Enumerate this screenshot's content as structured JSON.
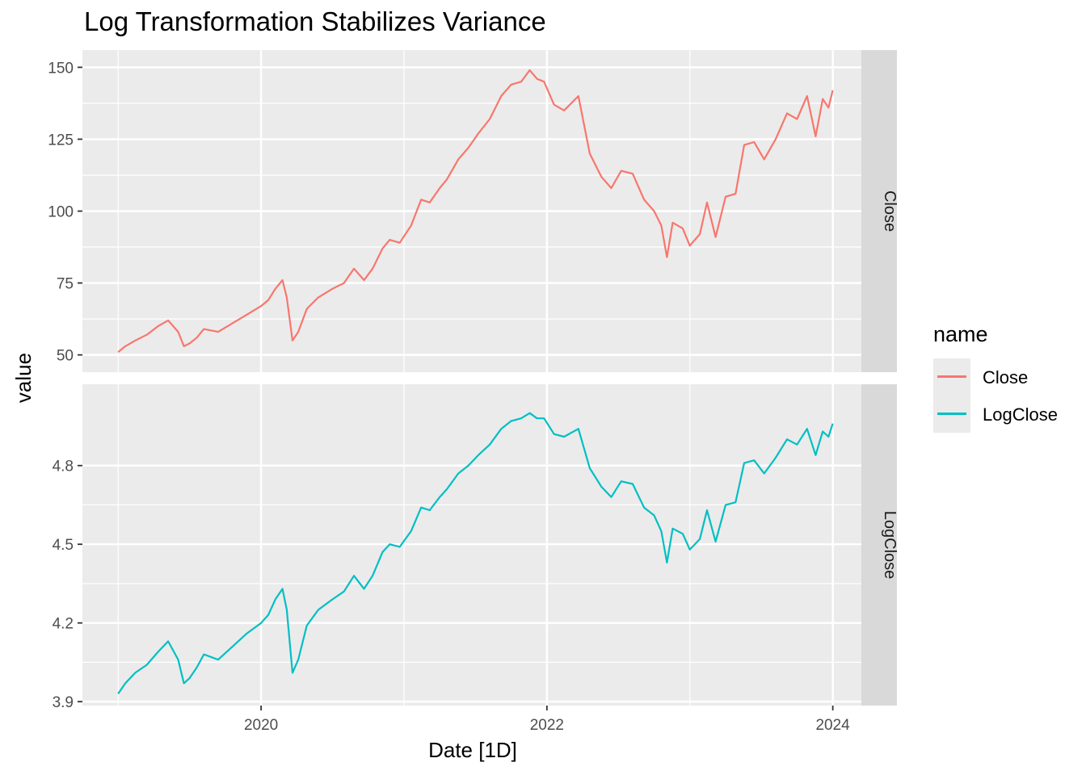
{
  "title": "Log Transformation Stabilizes Variance",
  "legend": {
    "title": "name",
    "items": [
      {
        "label": "Close",
        "color": "#F8766D"
      },
      {
        "label": "LogClose",
        "color": "#00BFC4"
      }
    ]
  },
  "chart_data": {
    "type": "line",
    "title": "Log Transformation Stabilizes Variance",
    "xlabel": "Date [1D]",
    "ylabel": "value",
    "x_ticks": [
      "2020",
      "2022",
      "2024"
    ],
    "xlim": [
      2018.75,
      2024.2
    ],
    "grid": true,
    "legend_position": "right",
    "facets": [
      {
        "strip_label": "Close",
        "series": "Close",
        "color": "#F8766D",
        "ylim": [
          44,
          156
        ],
        "y_ticks": [
          50,
          75,
          100,
          125,
          150
        ],
        "points": [
          [
            2019.0,
            51
          ],
          [
            2019.05,
            53
          ],
          [
            2019.12,
            55
          ],
          [
            2019.2,
            57
          ],
          [
            2019.28,
            60
          ],
          [
            2019.35,
            62
          ],
          [
            2019.42,
            58
          ],
          [
            2019.46,
            53
          ],
          [
            2019.5,
            54
          ],
          [
            2019.55,
            56
          ],
          [
            2019.6,
            59
          ],
          [
            2019.7,
            58
          ],
          [
            2019.8,
            61
          ],
          [
            2019.9,
            64
          ],
          [
            2020.0,
            67
          ],
          [
            2020.05,
            69
          ],
          [
            2020.1,
            73
          ],
          [
            2020.15,
            76
          ],
          [
            2020.18,
            70
          ],
          [
            2020.22,
            55
          ],
          [
            2020.26,
            58
          ],
          [
            2020.32,
            66
          ],
          [
            2020.4,
            70
          ],
          [
            2020.5,
            73
          ],
          [
            2020.58,
            75
          ],
          [
            2020.65,
            80
          ],
          [
            2020.72,
            76
          ],
          [
            2020.78,
            80
          ],
          [
            2020.85,
            87
          ],
          [
            2020.9,
            90
          ],
          [
            2020.97,
            89
          ],
          [
            2021.05,
            95
          ],
          [
            2021.12,
            104
          ],
          [
            2021.18,
            103
          ],
          [
            2021.25,
            108
          ],
          [
            2021.3,
            111
          ],
          [
            2021.38,
            118
          ],
          [
            2021.45,
            122
          ],
          [
            2021.52,
            127
          ],
          [
            2021.6,
            132
          ],
          [
            2021.68,
            140
          ],
          [
            2021.75,
            144
          ],
          [
            2021.82,
            145
          ],
          [
            2021.88,
            149
          ],
          [
            2021.93,
            146
          ],
          [
            2021.98,
            145
          ],
          [
            2022.05,
            137
          ],
          [
            2022.12,
            135
          ],
          [
            2022.22,
            140
          ],
          [
            2022.3,
            120
          ],
          [
            2022.38,
            112
          ],
          [
            2022.45,
            108
          ],
          [
            2022.52,
            114
          ],
          [
            2022.6,
            113
          ],
          [
            2022.68,
            104
          ],
          [
            2022.75,
            100
          ],
          [
            2022.8,
            95
          ],
          [
            2022.84,
            84
          ],
          [
            2022.88,
            96
          ],
          [
            2022.95,
            94
          ],
          [
            2023.0,
            88
          ],
          [
            2023.07,
            92
          ],
          [
            2023.12,
            103
          ],
          [
            2023.18,
            91
          ],
          [
            2023.25,
            105
          ],
          [
            2023.32,
            106
          ],
          [
            2023.38,
            123
          ],
          [
            2023.45,
            124
          ],
          [
            2023.52,
            118
          ],
          [
            2023.6,
            125
          ],
          [
            2023.68,
            134
          ],
          [
            2023.75,
            132
          ],
          [
            2023.82,
            140
          ],
          [
            2023.88,
            126
          ],
          [
            2023.93,
            139
          ],
          [
            2023.97,
            136
          ],
          [
            2024.0,
            142
          ]
        ]
      },
      {
        "strip_label": "LogClose",
        "series": "LogClose",
        "color": "#00BFC4",
        "ylim": [
          3.885,
          5.11
        ],
        "y_ticks": [
          3.9,
          4.2,
          4.5,
          4.8
        ],
        "points": [
          [
            2019.0,
            3.93
          ],
          [
            2019.05,
            3.97
          ],
          [
            2019.12,
            4.01
          ],
          [
            2019.2,
            4.04
          ],
          [
            2019.28,
            4.09
          ],
          [
            2019.35,
            4.13
          ],
          [
            2019.42,
            4.06
          ],
          [
            2019.46,
            3.97
          ],
          [
            2019.5,
            3.99
          ],
          [
            2019.55,
            4.03
          ],
          [
            2019.6,
            4.08
          ],
          [
            2019.7,
            4.06
          ],
          [
            2019.8,
            4.11
          ],
          [
            2019.9,
            4.16
          ],
          [
            2020.0,
            4.2
          ],
          [
            2020.05,
            4.23
          ],
          [
            2020.1,
            4.29
          ],
          [
            2020.15,
            4.33
          ],
          [
            2020.18,
            4.25
          ],
          [
            2020.22,
            4.01
          ],
          [
            2020.26,
            4.06
          ],
          [
            2020.32,
            4.19
          ],
          [
            2020.4,
            4.25
          ],
          [
            2020.5,
            4.29
          ],
          [
            2020.58,
            4.32
          ],
          [
            2020.65,
            4.38
          ],
          [
            2020.72,
            4.33
          ],
          [
            2020.78,
            4.38
          ],
          [
            2020.85,
            4.47
          ],
          [
            2020.9,
            4.5
          ],
          [
            2020.97,
            4.49
          ],
          [
            2021.05,
            4.55
          ],
          [
            2021.12,
            4.64
          ],
          [
            2021.18,
            4.63
          ],
          [
            2021.25,
            4.68
          ],
          [
            2021.3,
            4.71
          ],
          [
            2021.38,
            4.77
          ],
          [
            2021.45,
            4.8
          ],
          [
            2021.52,
            4.84
          ],
          [
            2021.6,
            4.88
          ],
          [
            2021.68,
            4.94
          ],
          [
            2021.75,
            4.97
          ],
          [
            2021.82,
            4.98
          ],
          [
            2021.88,
            5.0
          ],
          [
            2021.93,
            4.98
          ],
          [
            2021.98,
            4.98
          ],
          [
            2022.05,
            4.92
          ],
          [
            2022.12,
            4.91
          ],
          [
            2022.22,
            4.94
          ],
          [
            2022.3,
            4.79
          ],
          [
            2022.38,
            4.72
          ],
          [
            2022.45,
            4.68
          ],
          [
            2022.52,
            4.74
          ],
          [
            2022.6,
            4.73
          ],
          [
            2022.68,
            4.64
          ],
          [
            2022.75,
            4.61
          ],
          [
            2022.8,
            4.55
          ],
          [
            2022.84,
            4.43
          ],
          [
            2022.88,
            4.56
          ],
          [
            2022.95,
            4.54
          ],
          [
            2023.0,
            4.48
          ],
          [
            2023.07,
            4.52
          ],
          [
            2023.12,
            4.63
          ],
          [
            2023.18,
            4.51
          ],
          [
            2023.25,
            4.65
          ],
          [
            2023.32,
            4.66
          ],
          [
            2023.38,
            4.81
          ],
          [
            2023.45,
            4.82
          ],
          [
            2023.52,
            4.77
          ],
          [
            2023.6,
            4.83
          ],
          [
            2023.68,
            4.9
          ],
          [
            2023.75,
            4.88
          ],
          [
            2023.82,
            4.94
          ],
          [
            2023.88,
            4.84
          ],
          [
            2023.93,
            4.93
          ],
          [
            2023.97,
            4.91
          ],
          [
            2024.0,
            4.96
          ]
        ]
      }
    ]
  }
}
